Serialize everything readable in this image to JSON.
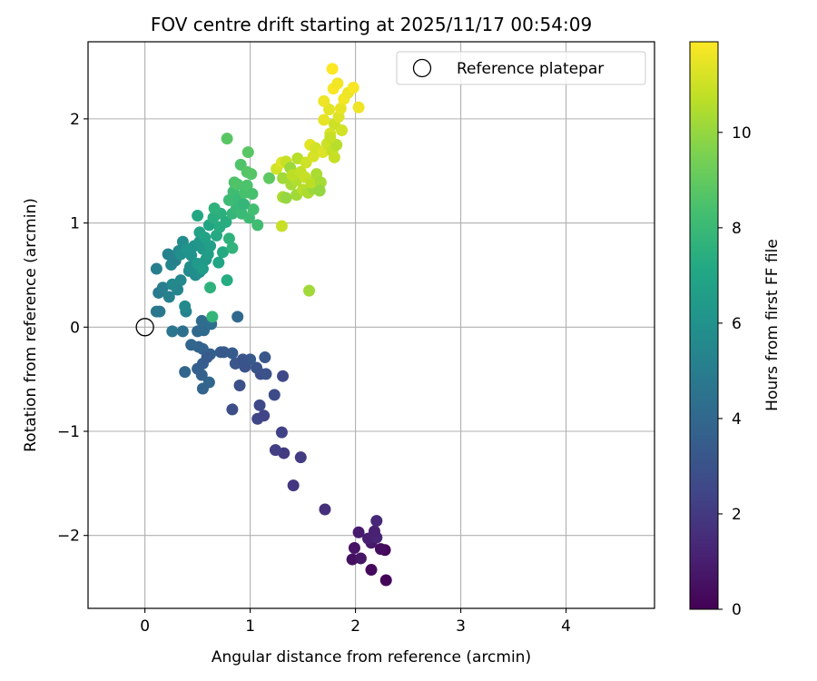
{
  "chart_data": {
    "type": "scatter",
    "title": "FOV centre drift starting at 2025/11/17 00:54:09",
    "xlabel": "Angular distance from reference (arcmin)",
    "ylabel": "Rotation from reference (arcmin)",
    "xlim": [
      -0.54,
      4.84
    ],
    "ylim": [
      -2.7,
      2.74
    ],
    "xticks": [
      0,
      1,
      2,
      3,
      4
    ],
    "yticks": [
      -2,
      -1,
      0,
      1,
      2
    ],
    "xtick_labels": [
      "0",
      "1",
      "2",
      "3",
      "4"
    ],
    "ytick_labels": [
      "−2",
      "−1",
      "0",
      "1",
      "2"
    ],
    "grid": true,
    "colorbar": {
      "label": "Hours from first FF file",
      "min": 0,
      "max": 11.9,
      "ticks": [
        0,
        2,
        4,
        6,
        8,
        10
      ],
      "tick_labels": [
        "0",
        "2",
        "4",
        "6",
        "8",
        "10"
      ],
      "colormap": "viridis"
    },
    "legend": {
      "position": "top-right",
      "entries": [
        "Reference platepar"
      ]
    },
    "reference_point": {
      "x": 0,
      "y": 0
    },
    "points": [
      {
        "x": 2.29,
        "y": -2.43,
        "h": 0.1
      },
      {
        "x": 2.15,
        "y": -2.33,
        "h": 0.3
      },
      {
        "x": 1.97,
        "y": -2.23,
        "h": 0.5
      },
      {
        "x": 2.05,
        "y": -2.22,
        "h": 0.7
      },
      {
        "x": 2.28,
        "y": -2.14,
        "h": 0.2
      },
      {
        "x": 2.24,
        "y": -2.13,
        "h": 0.4
      },
      {
        "x": 1.99,
        "y": -2.12,
        "h": 0.6
      },
      {
        "x": 2.15,
        "y": -2.07,
        "h": 0.8
      },
      {
        "x": 2.12,
        "y": -2.03,
        "h": 1.0
      },
      {
        "x": 2.2,
        "y": -2.02,
        "h": 1.2
      },
      {
        "x": 2.03,
        "y": -1.97,
        "h": 0.9
      },
      {
        "x": 2.18,
        "y": -1.96,
        "h": 1.1
      },
      {
        "x": 2.2,
        "y": -1.86,
        "h": 1.3
      },
      {
        "x": 1.71,
        "y": -1.75,
        "h": 1.6
      },
      {
        "x": 1.41,
        "y": -1.52,
        "h": 1.9
      },
      {
        "x": 1.48,
        "y": -1.25,
        "h": 2.1
      },
      {
        "x": 1.32,
        "y": -1.21,
        "h": 2.0
      },
      {
        "x": 1.24,
        "y": -1.18,
        "h": 2.2
      },
      {
        "x": 1.3,
        "y": -1.01,
        "h": 2.3
      },
      {
        "x": 1.07,
        "y": -0.88,
        "h": 2.5
      },
      {
        "x": 1.13,
        "y": -0.85,
        "h": 2.4
      },
      {
        "x": 1.09,
        "y": -0.75,
        "h": 2.6
      },
      {
        "x": 1.23,
        "y": -0.65,
        "h": 2.7
      },
      {
        "x": 0.83,
        "y": -0.79,
        "h": 2.8
      },
      {
        "x": 0.9,
        "y": -0.56,
        "h": 2.9
      },
      {
        "x": 1.31,
        "y": -0.47,
        "h": 2.6
      },
      {
        "x": 1.1,
        "y": -0.45,
        "h": 2.8
      },
      {
        "x": 1.15,
        "y": -0.45,
        "h": 3.0
      },
      {
        "x": 1.06,
        "y": -0.39,
        "h": 3.1
      },
      {
        "x": 0.95,
        "y": -0.38,
        "h": 3.0
      },
      {
        "x": 0.86,
        "y": -0.35,
        "h": 3.2
      },
      {
        "x": 1.0,
        "y": -0.31,
        "h": 3.3
      },
      {
        "x": 0.93,
        "y": -0.31,
        "h": 3.1
      },
      {
        "x": 1.14,
        "y": -0.29,
        "h": 3.2
      },
      {
        "x": 0.83,
        "y": -0.25,
        "h": 3.4
      },
      {
        "x": 0.72,
        "y": -0.24,
        "h": 3.5
      },
      {
        "x": 0.75,
        "y": -0.24,
        "h": 3.3
      },
      {
        "x": 0.62,
        "y": -0.26,
        "h": 3.6
      },
      {
        "x": 0.55,
        "y": -0.21,
        "h": 3.7
      },
      {
        "x": 0.51,
        "y": -0.19,
        "h": 3.8
      },
      {
        "x": 0.44,
        "y": -0.17,
        "h": 3.9
      },
      {
        "x": 0.55,
        "y": -0.59,
        "h": 3.8
      },
      {
        "x": 0.61,
        "y": -0.53,
        "h": 3.9
      },
      {
        "x": 0.54,
        "y": -0.46,
        "h": 3.7
      },
      {
        "x": 0.5,
        "y": -0.4,
        "h": 3.6
      },
      {
        "x": 0.55,
        "y": -0.35,
        "h": 3.5
      },
      {
        "x": 0.38,
        "y": -0.43,
        "h": 3.9
      },
      {
        "x": 0.59,
        "y": -0.29,
        "h": 3.4
      },
      {
        "x": 0.5,
        "y": -0.04,
        "h": 4.0
      },
      {
        "x": 0.56,
        "y": -0.03,
        "h": 4.1
      },
      {
        "x": 0.54,
        "y": 0.06,
        "h": 4.2
      },
      {
        "x": 0.63,
        "y": 0.03,
        "h": 4.3
      },
      {
        "x": 0.88,
        "y": 0.1,
        "h": 4.0
      },
      {
        "x": 0.36,
        "y": -0.04,
        "h": 4.4
      },
      {
        "x": 0.26,
        "y": -0.04,
        "h": 4.6
      },
      {
        "x": 0.14,
        "y": 0.15,
        "h": 4.8
      },
      {
        "x": 0.11,
        "y": 0.15,
        "h": 4.7
      },
      {
        "x": 0.13,
        "y": 0.33,
        "h": 4.9
      },
      {
        "x": 0.17,
        "y": 0.38,
        "h": 5.0
      },
      {
        "x": 0.11,
        "y": 0.56,
        "h": 5.1
      },
      {
        "x": 0.39,
        "y": 0.15,
        "h": 5.3
      },
      {
        "x": 0.38,
        "y": 0.2,
        "h": 5.6
      },
      {
        "x": 0.23,
        "y": 0.29,
        "h": 5.2
      },
      {
        "x": 0.31,
        "y": 0.36,
        "h": 5.4
      },
      {
        "x": 0.26,
        "y": 0.41,
        "h": 5.5
      },
      {
        "x": 0.34,
        "y": 0.45,
        "h": 5.5
      },
      {
        "x": 0.42,
        "y": 0.54,
        "h": 5.6
      },
      {
        "x": 0.48,
        "y": 0.5,
        "h": 5.7
      },
      {
        "x": 0.43,
        "y": 0.58,
        "h": 5.8
      },
      {
        "x": 0.52,
        "y": 0.53,
        "h": 5.9
      },
      {
        "x": 0.25,
        "y": 0.6,
        "h": 5.4
      },
      {
        "x": 0.29,
        "y": 0.64,
        "h": 5.2
      },
      {
        "x": 0.22,
        "y": 0.7,
        "h": 5.3
      },
      {
        "x": 0.32,
        "y": 0.73,
        "h": 5.5
      },
      {
        "x": 0.36,
        "y": 0.82,
        "h": 5.7
      },
      {
        "x": 0.34,
        "y": 0.7,
        "h": 5.9
      },
      {
        "x": 0.44,
        "y": 0.69,
        "h": 6.0
      },
      {
        "x": 0.47,
        "y": 0.78,
        "h": 6.1
      },
      {
        "x": 0.52,
        "y": 0.82,
        "h": 6.2
      },
      {
        "x": 0.55,
        "y": 0.75,
        "h": 6.3
      },
      {
        "x": 0.4,
        "y": 0.75,
        "h": 6.1
      },
      {
        "x": 0.58,
        "y": 0.65,
        "h": 6.4
      },
      {
        "x": 0.5,
        "y": 0.61,
        "h": 6.4
      },
      {
        "x": 0.55,
        "y": 0.56,
        "h": 6.5
      },
      {
        "x": 0.6,
        "y": 0.7,
        "h": 6.6
      },
      {
        "x": 0.62,
        "y": 0.78,
        "h": 6.7
      },
      {
        "x": 0.57,
        "y": 0.86,
        "h": 6.8
      },
      {
        "x": 0.52,
        "y": 0.91,
        "h": 6.9
      },
      {
        "x": 0.61,
        "y": 0.98,
        "h": 7.0
      },
      {
        "x": 0.5,
        "y": 1.07,
        "h": 7.1
      },
      {
        "x": 0.68,
        "y": 0.88,
        "h": 7.2
      },
      {
        "x": 0.71,
        "y": 0.96,
        "h": 7.3
      },
      {
        "x": 0.65,
        "y": 1.05,
        "h": 7.4
      },
      {
        "x": 0.72,
        "y": 1.09,
        "h": 7.5
      },
      {
        "x": 0.66,
        "y": 1.14,
        "h": 7.6
      },
      {
        "x": 0.77,
        "y": 1.01,
        "h": 7.4
      },
      {
        "x": 0.8,
        "y": 0.85,
        "h": 7.6
      },
      {
        "x": 0.74,
        "y": 0.72,
        "h": 7.2
      },
      {
        "x": 0.7,
        "y": 0.62,
        "h": 7.0
      },
      {
        "x": 0.83,
        "y": 0.76,
        "h": 7.7
      },
      {
        "x": 0.78,
        "y": 0.45,
        "h": 7.3
      },
      {
        "x": 0.62,
        "y": 0.38,
        "h": 7.6
      },
      {
        "x": 0.64,
        "y": 0.1,
        "h": 7.8
      },
      {
        "x": 0.83,
        "y": 1.09,
        "h": 7.8
      },
      {
        "x": 0.87,
        "y": 1.15,
        "h": 7.9
      },
      {
        "x": 0.92,
        "y": 1.09,
        "h": 8.0
      },
      {
        "x": 0.8,
        "y": 1.22,
        "h": 8.1
      },
      {
        "x": 0.84,
        "y": 1.3,
        "h": 8.2
      },
      {
        "x": 0.89,
        "y": 1.23,
        "h": 8.0
      },
      {
        "x": 0.94,
        "y": 1.18,
        "h": 7.8
      },
      {
        "x": 0.99,
        "y": 1.05,
        "h": 8.1
      },
      {
        "x": 1.03,
        "y": 1.13,
        "h": 8.3
      },
      {
        "x": 1.07,
        "y": 0.98,
        "h": 8.2
      },
      {
        "x": 0.95,
        "y": 1.29,
        "h": 8.4
      },
      {
        "x": 0.88,
        "y": 1.37,
        "h": 8.5
      },
      {
        "x": 0.97,
        "y": 1.36,
        "h": 8.5
      },
      {
        "x": 1.02,
        "y": 1.28,
        "h": 8.4
      },
      {
        "x": 0.85,
        "y": 1.39,
        "h": 8.6
      },
      {
        "x": 0.91,
        "y": 1.56,
        "h": 8.6
      },
      {
        "x": 0.97,
        "y": 1.49,
        "h": 8.7
      },
      {
        "x": 1.01,
        "y": 1.47,
        "h": 8.7
      },
      {
        "x": 0.98,
        "y": 1.68,
        "h": 8.8
      },
      {
        "x": 0.78,
        "y": 1.81,
        "h": 8.8
      },
      {
        "x": 1.18,
        "y": 1.43,
        "h": 8.9
      },
      {
        "x": 1.3,
        "y": 0.97,
        "h": 10.9
      },
      {
        "x": 1.56,
        "y": 0.35,
        "h": 10.2
      },
      {
        "x": 1.25,
        "y": 1.52,
        "h": 11.1
      },
      {
        "x": 1.31,
        "y": 1.43,
        "h": 10.2
      },
      {
        "x": 1.3,
        "y": 1.58,
        "h": 11.3
      },
      {
        "x": 1.34,
        "y": 1.59,
        "h": 10.9
      },
      {
        "x": 1.38,
        "y": 1.53,
        "h": 10.1
      },
      {
        "x": 1.45,
        "y": 1.62,
        "h": 10.6
      },
      {
        "x": 1.31,
        "y": 1.25,
        "h": 10.4
      },
      {
        "x": 1.34,
        "y": 1.24,
        "h": 10.0
      },
      {
        "x": 1.39,
        "y": 1.37,
        "h": 10.3
      },
      {
        "x": 1.44,
        "y": 1.41,
        "h": 10.5
      },
      {
        "x": 1.4,
        "y": 1.46,
        "h": 10.7
      },
      {
        "x": 1.48,
        "y": 1.49,
        "h": 10.8
      },
      {
        "x": 1.44,
        "y": 1.27,
        "h": 10.2
      },
      {
        "x": 1.5,
        "y": 1.32,
        "h": 10.6
      },
      {
        "x": 1.55,
        "y": 1.29,
        "h": 10.4
      },
      {
        "x": 1.6,
        "y": 1.33,
        "h": 10.1
      },
      {
        "x": 1.52,
        "y": 1.44,
        "h": 10.9
      },
      {
        "x": 1.58,
        "y": 1.39,
        "h": 10.7
      },
      {
        "x": 1.63,
        "y": 1.47,
        "h": 10.4
      },
      {
        "x": 1.67,
        "y": 1.39,
        "h": 10.3
      },
      {
        "x": 1.66,
        "y": 1.31,
        "h": 10.0
      },
      {
        "x": 1.53,
        "y": 1.58,
        "h": 11.0
      },
      {
        "x": 1.6,
        "y": 1.64,
        "h": 11.2
      },
      {
        "x": 1.57,
        "y": 1.75,
        "h": 11.4
      },
      {
        "x": 1.62,
        "y": 1.72,
        "h": 11.1
      },
      {
        "x": 1.69,
        "y": 1.68,
        "h": 11.3
      },
      {
        "x": 1.73,
        "y": 1.76,
        "h": 11.0
      },
      {
        "x": 1.78,
        "y": 1.69,
        "h": 10.8
      },
      {
        "x": 1.8,
        "y": 1.63,
        "h": 10.9
      },
      {
        "x": 1.82,
        "y": 1.75,
        "h": 10.6
      },
      {
        "x": 1.76,
        "y": 1.86,
        "h": 11.2
      },
      {
        "x": 1.8,
        "y": 1.95,
        "h": 11.0
      },
      {
        "x": 1.84,
        "y": 2.02,
        "h": 11.3
      },
      {
        "x": 1.7,
        "y": 1.99,
        "h": 11.5
      },
      {
        "x": 1.75,
        "y": 2.09,
        "h": 11.4
      },
      {
        "x": 1.7,
        "y": 2.17,
        "h": 11.6
      },
      {
        "x": 1.86,
        "y": 2.1,
        "h": 11.5
      },
      {
        "x": 1.89,
        "y": 2.19,
        "h": 11.7
      },
      {
        "x": 1.93,
        "y": 2.25,
        "h": 11.6
      },
      {
        "x": 1.79,
        "y": 2.29,
        "h": 11.8
      },
      {
        "x": 1.83,
        "y": 2.34,
        "h": 11.7
      },
      {
        "x": 1.98,
        "y": 2.3,
        "h": 11.8
      },
      {
        "x": 1.78,
        "y": 2.48,
        "h": 11.9
      },
      {
        "x": 2.03,
        "y": 2.11,
        "h": 11.6
      },
      {
        "x": 1.87,
        "y": 1.89,
        "h": 11.1
      },
      {
        "x": 1.76,
        "y": 1.82,
        "h": 10.9
      }
    ]
  }
}
